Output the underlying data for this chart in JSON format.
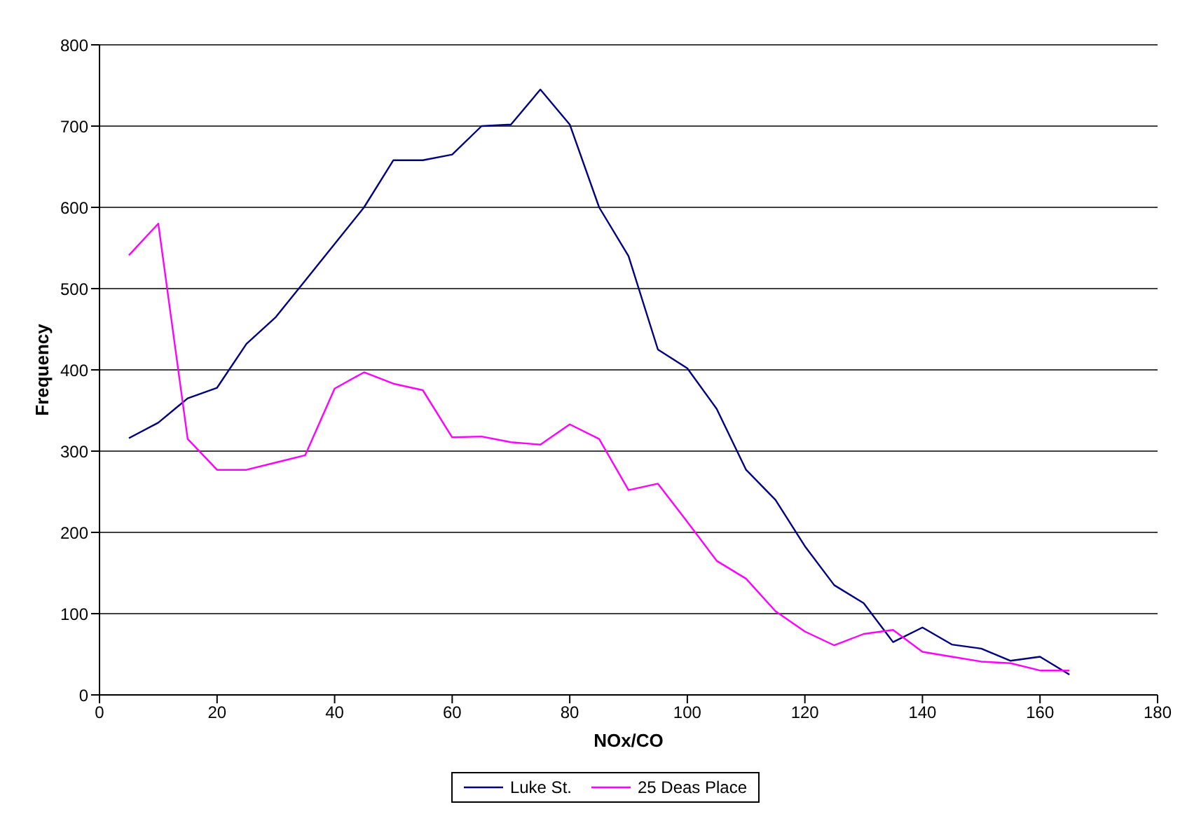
{
  "chart_data": {
    "type": "line",
    "xlabel": "NOx/CO",
    "ylabel": "Frequency",
    "x": [
      5,
      10,
      15,
      20,
      25,
      30,
      35,
      40,
      45,
      50,
      55,
      60,
      65,
      70,
      75,
      80,
      85,
      90,
      95,
      100,
      105,
      110,
      115,
      120,
      125,
      130,
      135,
      140,
      145,
      150,
      155,
      160,
      165
    ],
    "series": [
      {
        "name": "Luke St.",
        "color": "#000080",
        "values": [
          316,
          335,
          365,
          378,
          432,
          465,
          510,
          555,
          600,
          658,
          658,
          665,
          700,
          702,
          745,
          702,
          600,
          540,
          425,
          402,
          352,
          277,
          240,
          183,
          135,
          113,
          65,
          83,
          62,
          57,
          42,
          47,
          25
        ]
      },
      {
        "name": "25 Deas Place",
        "color": "#ff00ff",
        "values": [
          541,
          580,
          315,
          277,
          277,
          286,
          295,
          377,
          397,
          383,
          375,
          317,
          318,
          311,
          308,
          333,
          315,
          252,
          260,
          213,
          165,
          143,
          103,
          78,
          61,
          75,
          80,
          53,
          47,
          41,
          39,
          30,
          30
        ]
      }
    ],
    "xlim": [
      0,
      180
    ],
    "xticks": [
      0,
      20,
      40,
      60,
      80,
      100,
      120,
      140,
      160,
      180
    ],
    "ylim": [
      0,
      800
    ],
    "yticks": [
      0,
      100,
      200,
      300,
      400,
      500,
      600,
      700,
      800
    ],
    "grid": "y",
    "legend": "bottom",
    "marker": "none",
    "line_style": "solid"
  }
}
